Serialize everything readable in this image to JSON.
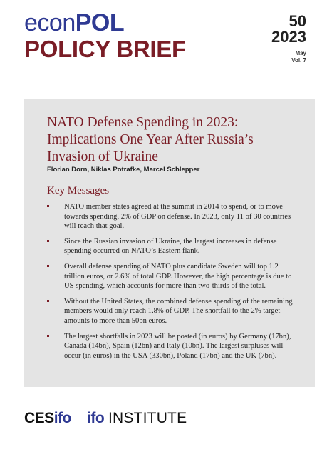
{
  "header": {
    "logo_econ": "econ",
    "logo_pol": "POL",
    "series_title": "POLICY BRIEF",
    "issue_number": "50",
    "issue_year": "2023",
    "issue_month": "May",
    "issue_volume": "Vol. 7"
  },
  "brief": {
    "title": "NATO Defense Spending in 2023: Implications One Year After Russia’s Invasion of Ukraine",
    "authors": "Florian Dorn, Niklas Potrafke, Marcel Schlepper",
    "key_messages_heading": "Key Messages",
    "key_messages": [
      "NATO member states agreed at the summit in 2014 to spend, or to move towards spending, 2% of GDP on defense. In 2023, only 11 of 30 countries will reach that goal.",
      "Since the Russian invasion of Ukraine, the largest increases in defense spending occurred on NATO’s Eastern flank.",
      "Overall defense spending of NATO plus candidate Sweden will top 1.2 trillion euros, or 2.6% of total GDP. However, the high percentage is due to US spending, which accounts for more than two-thirds of the total.",
      "Without the United States, the combined defense spending of the remaining members would only reach 1.8% of GDP. The shortfall to the 2% target amounts to more than 50bn euros.",
      "The largest shortfalls in 2023 will be posted (in euros) by Germany (17bn), Canada (14bn), Spain (12bn) and Italy (10bn). The largest surpluses will occur (in euros) in the USA (330bn), Poland (17bn) and the UK (7bn)."
    ]
  },
  "footer": {
    "cesifo_ces": "CES",
    "cesifo_ifo": "ifo",
    "ifo_institute_ifo": "ifo",
    "ifo_institute_text": "INSTITUTE"
  },
  "colors": {
    "brand_blue": "#2f3a93",
    "brand_red": "#7a1d26",
    "panel_gray": "#e4e4e4"
  }
}
